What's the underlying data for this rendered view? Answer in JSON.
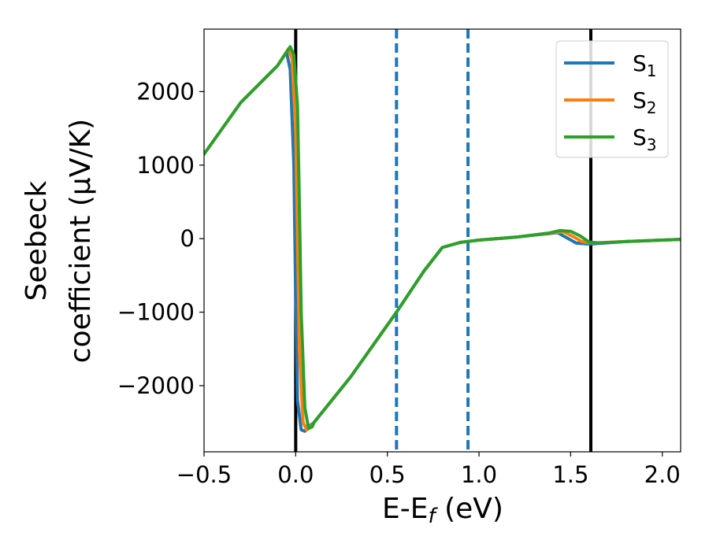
{
  "chart_data": {
    "type": "line",
    "title": "",
    "xlabel": "E-E",
    "xlabel_subscript": "f",
    "xlabel_unit": " (eV)",
    "ylabel_line1": "Seebeck",
    "ylabel_line2": "coefficient  (μV/K)",
    "xlim": [
      -0.5,
      2.1
    ],
    "ylim": [
      -2900,
      2850
    ],
    "xticks": [
      -0.5,
      0.0,
      0.5,
      1.0,
      1.5,
      2.0
    ],
    "xtick_labels": [
      "−0.5",
      "0.0",
      "0.5",
      "1.0",
      "1.5",
      "2.0"
    ],
    "yticks": [
      2000,
      1000,
      0,
      -1000,
      -2000
    ],
    "ytick_labels": [
      "2000",
      "1000",
      "0",
      "−1000",
      "−2000"
    ],
    "grid": false,
    "legend_position": "top-right",
    "vertical_lines": [
      {
        "x": 0.0,
        "style": "solid",
        "color": "#000000"
      },
      {
        "x": 1.61,
        "style": "solid",
        "color": "#000000"
      },
      {
        "x": 0.55,
        "style": "dashed",
        "color": "#1f77b4"
      },
      {
        "x": 0.94,
        "style": "dashed",
        "color": "#1f77b4"
      }
    ],
    "series": [
      {
        "name": "S",
        "subscript": "1",
        "color": "#1f77b4",
        "x": [
          -0.5,
          -0.3,
          -0.1,
          -0.05,
          -0.03,
          -0.01,
          0.0,
          0.01,
          0.03,
          0.05,
          0.07,
          0.1,
          0.3,
          0.55,
          0.7,
          0.8,
          0.9,
          0.95,
          1.0,
          1.2,
          1.35,
          1.43,
          1.48,
          1.53,
          1.6,
          1.65,
          1.8,
          2.0,
          2.1
        ],
        "y": [
          1150,
          1850,
          2350,
          2540,
          2300,
          1000,
          -800,
          -2200,
          -2600,
          -2620,
          -2560,
          -2500,
          -1880,
          -1000,
          -440,
          -120,
          -50,
          -35,
          -20,
          20,
          60,
          80,
          10,
          -60,
          -75,
          -65,
          -40,
          -20,
          -10
        ]
      },
      {
        "name": "S",
        "subscript": "2",
        "color": "#ff7f0e",
        "x": [
          -0.5,
          -0.3,
          -0.1,
          -0.04,
          -0.02,
          0.0,
          0.01,
          0.02,
          0.04,
          0.06,
          0.08,
          0.1,
          0.3,
          0.55,
          0.7,
          0.8,
          0.9,
          0.95,
          1.0,
          1.2,
          1.35,
          1.46,
          1.52,
          1.56,
          1.6,
          1.65,
          1.8,
          2.0,
          2.1
        ],
        "y": [
          1150,
          1850,
          2350,
          2580,
          2450,
          1500,
          0,
          -1500,
          -2500,
          -2600,
          -2570,
          -2500,
          -1880,
          -1000,
          -440,
          -120,
          -50,
          -35,
          -20,
          20,
          65,
          95,
          20,
          -40,
          -55,
          -55,
          -40,
          -20,
          -10
        ]
      },
      {
        "name": "S",
        "subscript": "3",
        "color": "#2ca02c",
        "x": [
          -0.5,
          -0.3,
          -0.1,
          -0.03,
          -0.01,
          0.01,
          0.02,
          0.03,
          0.05,
          0.07,
          0.09,
          0.1,
          0.3,
          0.55,
          0.7,
          0.8,
          0.9,
          0.95,
          1.0,
          1.2,
          1.38,
          1.44,
          1.5,
          1.55,
          1.6,
          1.65,
          1.8,
          2.0,
          2.1
        ],
        "y": [
          1150,
          1850,
          2350,
          2610,
          2500,
          1800,
          500,
          -1000,
          -2300,
          -2580,
          -2560,
          -2500,
          -1880,
          -1000,
          -440,
          -120,
          -50,
          -35,
          -20,
          20,
          75,
          110,
          100,
          40,
          -45,
          -60,
          -40,
          -20,
          -10
        ]
      }
    ]
  }
}
